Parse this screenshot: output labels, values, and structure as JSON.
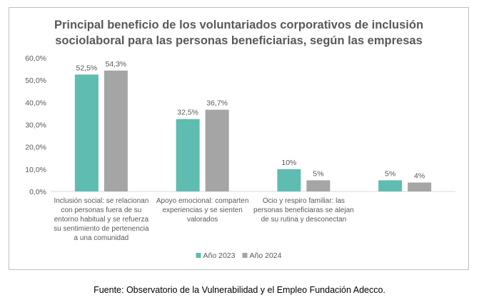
{
  "chart_data": {
    "type": "bar",
    "title_lines": [
      "Principal beneficio de los voluntariados corporativos de inclusión",
      "sociolaboral para las personas beneficiarias, según las empresas"
    ],
    "categories": [
      [
        "Inclusión social: se relacionan",
        "con personas fuera de su",
        "entorno habitual y se refuerza",
        "su sentimiento de pertenencia",
        "a una comunidad"
      ],
      [
        "Apoyo emocional: comparten",
        "experiencias y se sienten",
        "valorados"
      ],
      [
        "Ocio y respiro familiar: las",
        "personas beneficiaras se alejan",
        "de su rutina y desconectan"
      ],
      []
    ],
    "series": [
      {
        "name": "Año 2023",
        "color": "#5fbcb0",
        "values": [
          52.5,
          32.5,
          10,
          5
        ],
        "labels": [
          "52,5%",
          "32,5%",
          "10%",
          "5%"
        ]
      },
      {
        "name": "Año 2024",
        "color": "#a5a5a5",
        "values": [
          54.3,
          36.7,
          5,
          4
        ],
        "labels": [
          "54,3%",
          "36,7%",
          "5%",
          "4%"
        ]
      }
    ],
    "yticks": [
      "0,0%",
      "10,0%",
      "20,0%",
      "30,0%",
      "40,0%",
      "50,0%",
      "60,0%"
    ],
    "ylim": [
      0,
      60
    ],
    "legend_position": "bottom",
    "grid": false
  },
  "source_note": "Fuente: Observatorio de la Vulnerabilidad y el Empleo Fundación Adecco."
}
